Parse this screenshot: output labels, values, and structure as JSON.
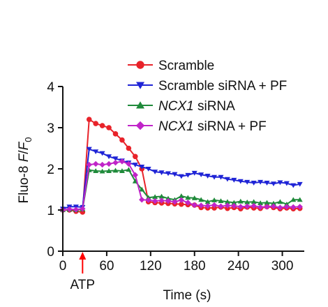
{
  "chart_data": {
    "type": "line",
    "title": "",
    "ylabel": {
      "pre": "Fluo-8 ",
      "f": "F",
      "slash": "/",
      "f0": "F",
      "sub": "0"
    },
    "xlabel": "Time (s)",
    "xlim": [
      0,
      330
    ],
    "ylim": [
      0,
      4
    ],
    "xticks": [
      0,
      60,
      120,
      180,
      240,
      300
    ],
    "yticks": [
      0,
      1,
      2,
      3,
      4
    ],
    "legend_position": "top-right",
    "annotation": {
      "text": "ATP",
      "x": 27,
      "color": "#ff0000"
    },
    "series": [
      {
        "name": "Scramble",
        "color": "#e8232a",
        "marker": "circle",
        "x": [
          0,
          9,
          18,
          27,
          36,
          45,
          54,
          63,
          72,
          81,
          90,
          99,
          108,
          117,
          126,
          135,
          144,
          153,
          162,
          171,
          180,
          189,
          198,
          207,
          216,
          225,
          234,
          243,
          252,
          261,
          270,
          279,
          288,
          297,
          306,
          315,
          324
        ],
        "y": [
          1.0,
          1.0,
          0.97,
          0.95,
          3.2,
          3.1,
          3.05,
          3.0,
          2.85,
          2.7,
          2.5,
          2.3,
          2.0,
          1.2,
          1.18,
          1.17,
          1.16,
          1.15,
          1.14,
          1.13,
          1.12,
          1.06,
          1.05,
          1.05,
          1.07,
          1.04,
          1.06,
          1.03,
          1.07,
          1.05,
          1.04,
          1.08,
          1.06,
          1.03,
          1.05,
          1.03,
          1.04
        ]
      },
      {
        "name": "Scramble siRNA + PF",
        "color": "#1f24d6",
        "marker": "triangle-down",
        "x": [
          0,
          9,
          18,
          27,
          36,
          45,
          54,
          63,
          72,
          81,
          90,
          99,
          108,
          117,
          126,
          135,
          144,
          153,
          162,
          171,
          180,
          189,
          198,
          207,
          216,
          225,
          234,
          243,
          252,
          261,
          270,
          279,
          288,
          297,
          306,
          315,
          324
        ],
        "y": [
          1.03,
          1.08,
          1.08,
          1.07,
          2.48,
          2.42,
          2.38,
          2.3,
          2.25,
          2.2,
          2.15,
          2.1,
          2.05,
          2.0,
          1.93,
          1.91,
          1.89,
          1.87,
          1.82,
          1.85,
          1.9,
          1.86,
          1.83,
          1.8,
          1.8,
          1.75,
          1.73,
          1.7,
          1.68,
          1.66,
          1.68,
          1.66,
          1.64,
          1.67,
          1.65,
          1.6,
          1.63
        ]
      },
      {
        "name": "NCX1 siRNA",
        "color": "#1f8a3a",
        "marker": "triangle-up",
        "x": [
          0,
          9,
          18,
          27,
          36,
          45,
          54,
          63,
          72,
          81,
          90,
          99,
          108,
          117,
          126,
          135,
          144,
          153,
          162,
          171,
          180,
          189,
          198,
          207,
          216,
          225,
          234,
          243,
          252,
          261,
          270,
          279,
          288,
          297,
          306,
          315,
          324
        ],
        "y": [
          1.0,
          1.01,
          1.0,
          1.02,
          1.97,
          1.95,
          1.94,
          1.95,
          1.96,
          1.95,
          1.98,
          1.7,
          1.5,
          1.3,
          1.32,
          1.33,
          1.28,
          1.25,
          1.34,
          1.3,
          1.29,
          1.25,
          1.2,
          1.24,
          1.22,
          1.2,
          1.18,
          1.21,
          1.19,
          1.2,
          1.17,
          1.18,
          1.16,
          1.2,
          1.14,
          1.25,
          1.25
        ]
      },
      {
        "name": "NCX1 siRNA + PF",
        "color": "#c024c8",
        "marker": "diamond",
        "x": [
          0,
          9,
          18,
          27,
          36,
          45,
          54,
          63,
          72,
          81,
          90,
          99,
          108,
          117,
          126,
          135,
          144,
          153,
          162,
          171,
          180,
          189,
          198,
          207,
          216,
          225,
          234,
          243,
          252,
          261,
          270,
          279,
          288,
          297,
          306,
          315,
          324
        ],
        "y": [
          1.0,
          1.02,
          1.01,
          1.03,
          2.1,
          2.12,
          2.1,
          2.12,
          2.15,
          2.18,
          2.12,
          1.85,
          1.25,
          1.24,
          1.22,
          1.23,
          1.22,
          1.2,
          1.24,
          1.18,
          1.12,
          1.11,
          1.1,
          1.12,
          1.09,
          1.11,
          1.1,
          1.08,
          1.09,
          1.1,
          1.07,
          1.08,
          1.09,
          1.06,
          1.08,
          1.07,
          1.08
        ]
      }
    ]
  }
}
